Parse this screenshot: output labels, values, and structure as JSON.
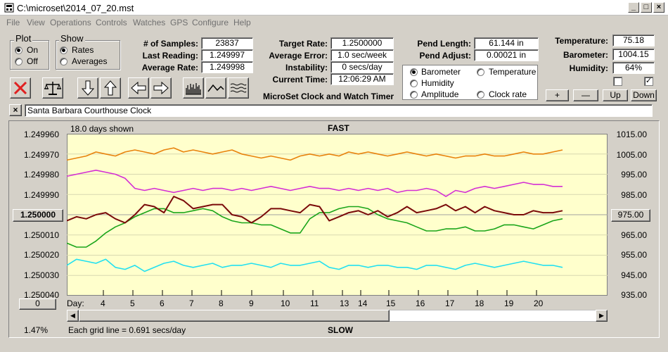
{
  "window": {
    "title": "C:\\microset\\2014_07_20.mst"
  },
  "menu": [
    "File",
    "View",
    "Operations",
    "Controls",
    "Watches",
    "GPS",
    "Configure",
    "Help"
  ],
  "plot_group": {
    "label": "Plot",
    "on": "On",
    "off": "Off",
    "selected": "On"
  },
  "show_group": {
    "label": "Show",
    "rates": "Rates",
    "averages": "Averages",
    "selected": "Rates"
  },
  "stats": {
    "samples_label": "# of Samples:",
    "samples": "23837",
    "last_reading_label": "Last Reading:",
    "last_reading": "1.249997",
    "average_rate_label": "Average Rate:",
    "average_rate": "1.249998"
  },
  "rate": {
    "target_rate_label": "Target Rate:",
    "target_rate": "1.2500000",
    "average_error_label": "Average Error:",
    "average_error": "1.0 sec/week",
    "instability_label": "Instability:",
    "instability": "0 secs/day",
    "current_time_label": "Current Time:",
    "current_time": "12:06:29 AM",
    "caption": "MicroSet Clock and Watch Timer"
  },
  "pend": {
    "length_label": "Pend Length:",
    "length": "61.144 in",
    "adjust_label": "Pend Adjust:",
    "adjust": "0.00021 in"
  },
  "series_select": {
    "barometer": "Barometer",
    "temperature": "Temperature",
    "humidity": "Humidity",
    "amplitude": "Amplitude",
    "clock_rate": "Clock rate",
    "selected": "Barometer"
  },
  "env": {
    "temperature_label": "Temperature:",
    "temperature": "75.18",
    "barometer_label": "Barometer:",
    "barometer": "1004.15",
    "humidity_label": "Humidity:",
    "humidity": "64%"
  },
  "scale_buttons": {
    "plus": "+",
    "minus": "—",
    "up": "Up",
    "down": "Down"
  },
  "clock_name": "Santa Barbara Courthouse Clock",
  "chart_header": {
    "days_shown": "18.0 days shown",
    "fast": "FAST",
    "slow": "SLOW",
    "grid_note": "Each grid line = 0.691 secs/day",
    "percent": "1.47%",
    "day_label": "Day:",
    "left_button": "1.250000",
    "right_button": "975.00",
    "zero_button": "0"
  },
  "colors": {
    "barometer": "#e8820c",
    "temperature": "#1aa51a",
    "humidity": "#d42ed4",
    "amplitude": "#22e0f0",
    "clock_rate": "#7a0a0a",
    "plot_bg": "#ffffcc"
  },
  "chart_data": {
    "type": "line",
    "x_label": "Day:",
    "x_ticks": [
      "4",
      "5",
      "6",
      "7",
      "8",
      "9",
      "10",
      "11",
      "13",
      "14",
      "15",
      "16",
      "17",
      "18",
      "19",
      "20"
    ],
    "y_left_ticks": [
      "1.249960",
      "1.249970",
      "1.249980",
      "1.249990",
      "1.250000",
      "1.250010",
      "1.250020",
      "1.250030",
      "1.250040"
    ],
    "y_right_ticks": [
      "1015.00",
      "1005.00",
      "995.00",
      "985.00",
      "975.00",
      "965.00",
      "955.00",
      "945.00",
      "935.00"
    ],
    "ylim_right": [
      935,
      1015
    ],
    "series": [
      {
        "name": "Barometer",
        "color": "#e8820c",
        "values": [
          1002,
          1003,
          1004,
          1006,
          1005,
          1004,
          1006,
          1007,
          1006,
          1005,
          1007,
          1008,
          1006,
          1007,
          1006,
          1005,
          1006,
          1007,
          1005,
          1004,
          1003,
          1004,
          1003,
          1002,
          1004,
          1005,
          1004,
          1005,
          1004,
          1006,
          1005,
          1006,
          1005,
          1004,
          1005,
          1006,
          1005,
          1004,
          1005,
          1004,
          1003,
          1004,
          1004,
          1005,
          1004,
          1004,
          1005,
          1006,
          1005,
          1005,
          1006,
          1007
        ]
      },
      {
        "name": "Humidity",
        "color": "#d42ed4",
        "values": [
          994,
          995,
          996,
          997,
          996,
          995,
          993,
          988,
          987,
          988,
          987,
          986,
          987,
          988,
          987,
          988,
          988,
          987,
          988,
          987,
          988,
          989,
          988,
          987,
          988,
          989,
          988,
          988,
          987,
          988,
          987,
          988,
          987,
          988,
          986,
          987,
          987,
          988,
          987,
          984,
          987,
          986,
          988,
          989,
          988,
          989,
          990,
          991,
          990,
          990,
          989,
          989
        ]
      },
      {
        "name": "Temperature",
        "color": "#1aa51a",
        "values": [
          961,
          959,
          959,
          962,
          966,
          969,
          971,
          974,
          976,
          978,
          978,
          976,
          976,
          977,
          978,
          977,
          974,
          972,
          971,
          971,
          970,
          970,
          968,
          966,
          966,
          973,
          976,
          976,
          978,
          979,
          979,
          978,
          975,
          973,
          972,
          971,
          969,
          967,
          967,
          968,
          968,
          969,
          967,
          967,
          968,
          970,
          970,
          969,
          968,
          970,
          972,
          973
        ]
      },
      {
        "name": "Amplitude",
        "color": "#22e0f0",
        "values": [
          950,
          953,
          952,
          951,
          953,
          949,
          948,
          950,
          947,
          949,
          951,
          952,
          950,
          949,
          950,
          951,
          949,
          950,
          950,
          951,
          950,
          949,
          951,
          950,
          950,
          951,
          952,
          949,
          948,
          950,
          950,
          949,
          950,
          950,
          949,
          949,
          948,
          950,
          950,
          949,
          948,
          950,
          951,
          950,
          949,
          950,
          951,
          952,
          951,
          950,
          950,
          949
        ]
      },
      {
        "name": "Clock rate",
        "color": "#7a0a0a",
        "values": [
          972,
          974,
          973,
          975,
          976,
          973,
          971,
          975,
          980,
          979,
          976,
          984,
          982,
          978,
          979,
          980,
          980,
          975,
          974,
          971,
          974,
          978,
          978,
          977,
          976,
          980,
          979,
          972,
          974,
          976,
          977,
          975,
          977,
          974,
          976,
          979,
          976,
          977,
          978,
          980,
          977,
          979,
          976,
          979,
          977,
          976,
          975,
          975,
          977,
          976,
          976,
          977
        ]
      }
    ]
  }
}
